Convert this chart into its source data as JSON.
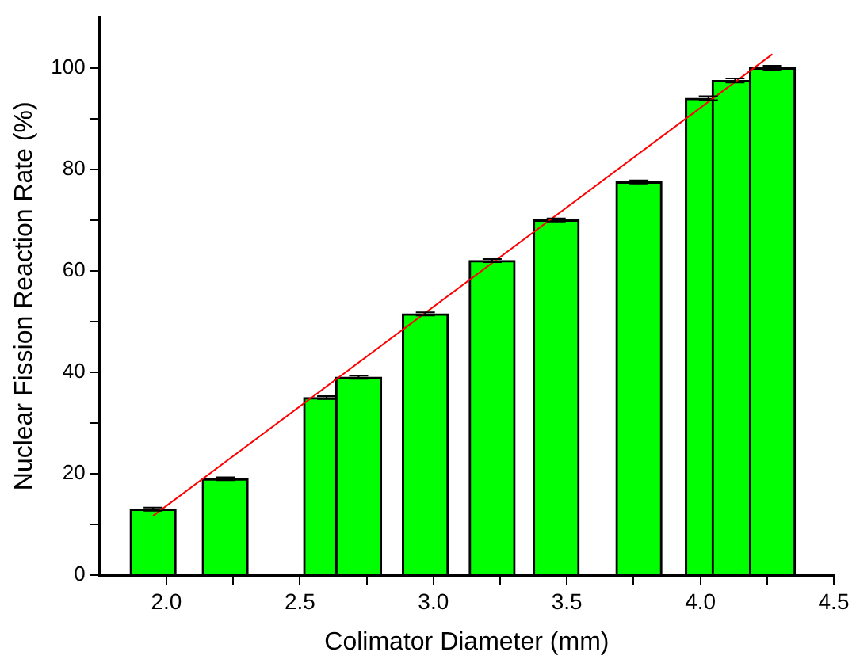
{
  "chart_data": {
    "type": "bar",
    "xlabel": "Colimator Diameter (mm)",
    "ylabel": "Nuclear Fission Reaction Rate (%)",
    "x": [
      1.95,
      2.22,
      2.6,
      2.72,
      2.97,
      3.22,
      3.46,
      3.77,
      4.03,
      4.13,
      4.27
    ],
    "series": [
      {
        "color": "#00ff00",
        "values": [
          13,
          19,
          35,
          39,
          51.5,
          62,
          70,
          77.5,
          94,
          97.5,
          100
        ],
        "errors": [
          0.3,
          0.3,
          0.3,
          0.3,
          0.3,
          0.3,
          0.3,
          0.3,
          0.4,
          0.4,
          0.4
        ]
      },
      {
        "type": "line",
        "color": "#ff0000",
        "x": [
          1.95,
          4.27
        ],
        "values": [
          11.7,
          102.7
        ]
      }
    ],
    "xlim": [
      1.75,
      4.5
    ],
    "xticks": [
      {
        "value": 2,
        "label": "2.0"
      },
      {
        "value": 2.25,
        "label": null
      },
      {
        "value": 2.5,
        "label": "2.5"
      },
      {
        "value": 2.75,
        "label": null
      },
      {
        "value": 3,
        "label": "3.0"
      },
      {
        "value": 3.25,
        "label": null
      },
      {
        "value": 3.5,
        "label": "3.5"
      },
      {
        "value": 3.75,
        "label": null
      },
      {
        "value": 4,
        "label": "4.0"
      },
      {
        "value": 4.25,
        "label": null
      },
      {
        "value": 4.5,
        "label": "4.5"
      }
    ],
    "ylim": [
      0,
      110
    ],
    "yticks": [
      0,
      {
        "value": 10,
        "label": null
      },
      20,
      {
        "value": 30,
        "label": null
      },
      40,
      {
        "value": 50,
        "label": null
      },
      60,
      {
        "value": 70,
        "label": null
      },
      80,
      {
        "value": 90,
        "label": null
      },
      100
    ],
    "grid": false,
    "legend": false,
    "marker": "none",
    "line_style": "solid"
  }
}
